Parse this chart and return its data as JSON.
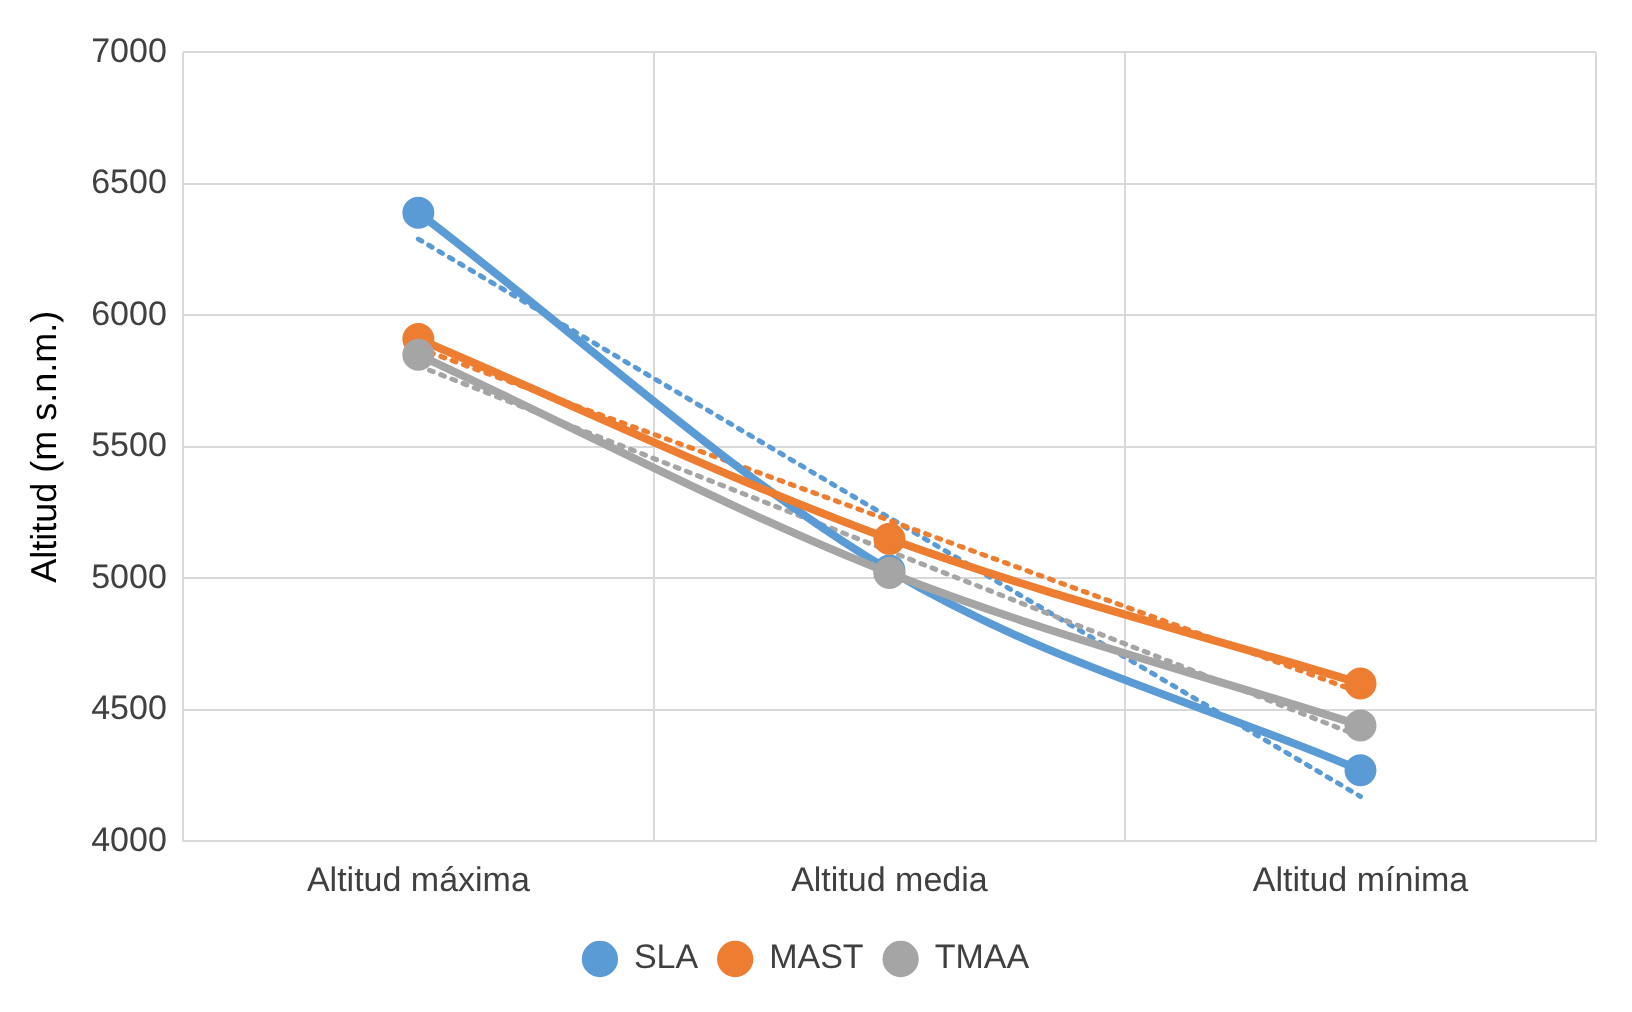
{
  "chart_data": {
    "type": "line",
    "ylabel": "Altitud (m s.n.m.)",
    "categories": [
      "Altitud máxima",
      "Altitud media",
      "Altitud mínima"
    ],
    "series": [
      {
        "name": "SLA",
        "color": "#5b9bd5",
        "values": [
          6390,
          5030,
          4270
        ],
        "marker": "circle"
      },
      {
        "name": "MAST",
        "color": "#ed7d31",
        "values": [
          5910,
          5150,
          4600
        ],
        "marker": "circle"
      },
      {
        "name": "TMAA",
        "color": "#a5a5a5",
        "values": [
          5850,
          5020,
          4440
        ],
        "marker": "circle"
      },
      {
        "color": "#5b9bd5",
        "x": [
          "Altitud máxima",
          "Altitud mínima"
        ],
        "values": [
          6290,
          4170
        ],
        "line_style": "dotted",
        "marker": "none"
      },
      {
        "color": "#ed7d31",
        "x": [
          "Altitud máxima",
          "Altitud mínima"
        ],
        "values": [
          5875,
          4565
        ],
        "line_style": "dotted",
        "marker": "none"
      },
      {
        "color": "#a5a5a5",
        "x": [
          "Altitud máxima",
          "Altitud mínima"
        ],
        "values": [
          5808,
          4398
        ],
        "line_style": "dotted",
        "marker": "none"
      }
    ],
    "ylim": [
      4000,
      7000
    ],
    "yticks": [
      4000,
      4500,
      5000,
      5500,
      6000,
      6500,
      7000
    ],
    "grid": true,
    "legend": "bottom"
  }
}
